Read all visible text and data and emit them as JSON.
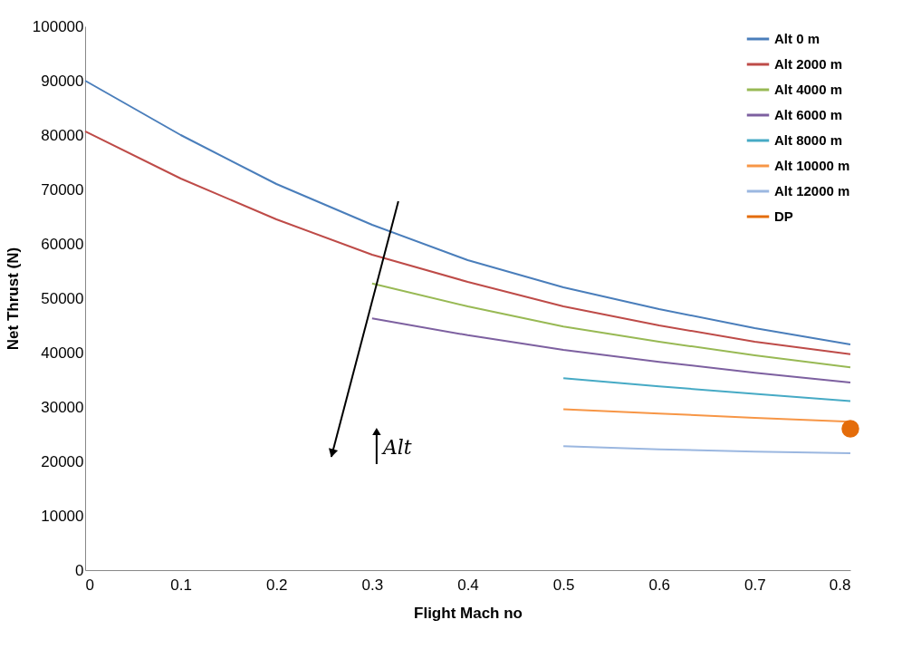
{
  "chart_data": {
    "type": "line",
    "xlabel": "Flight Mach no",
    "ylabel": "Net Thrust (N)",
    "xlim": [
      0,
      0.8
    ],
    "xticks": [
      0,
      0.1,
      0.2,
      0.3,
      0.4,
      0.5,
      0.6,
      0.7,
      0.8
    ],
    "ylim": [
      0,
      100000
    ],
    "yticks": [
      0,
      10000,
      20000,
      30000,
      40000,
      50000,
      60000,
      70000,
      80000,
      90000,
      100000
    ],
    "grid": false,
    "legend": "top right",
    "marker": "none",
    "line_style": "solid",
    "series": [
      {
        "name": "Alt 0 m",
        "color": "#4a7ebb",
        "x": [
          0,
          0.1,
          0.2,
          0.3,
          0.4,
          0.5,
          0.6,
          0.7,
          0.8
        ],
        "values": [
          90000,
          80000,
          71000,
          63500,
          57000,
          52000,
          48000,
          44500,
          41500
        ]
      },
      {
        "name": "Alt 2000 m",
        "color": "#be4b48",
        "x": [
          0,
          0.1,
          0.2,
          0.3,
          0.4,
          0.5,
          0.6,
          0.7,
          0.8
        ],
        "values": [
          80700,
          72000,
          64500,
          58000,
          53000,
          48500,
          45000,
          42000,
          39700
        ]
      },
      {
        "name": "Alt 4000 m",
        "color": "#98b954",
        "x": [
          0.3,
          0.4,
          0.5,
          0.6,
          0.7,
          0.8
        ],
        "values": [
          52700,
          48500,
          44800,
          42000,
          39500,
          37300
        ]
      },
      {
        "name": "Alt 6000 m",
        "color": "#7d60a0",
        "x": [
          0.3,
          0.4,
          0.5,
          0.6,
          0.7,
          0.8
        ],
        "values": [
          46300,
          43200,
          40500,
          38300,
          36300,
          34500
        ]
      },
      {
        "name": "Alt 8000 m",
        "color": "#46aac5",
        "x": [
          0.5,
          0.6,
          0.7,
          0.8
        ],
        "values": [
          35300,
          33800,
          32400,
          31100
        ]
      },
      {
        "name": "Alt 10000 m",
        "color": "#f79646",
        "x": [
          0.5,
          0.6,
          0.7,
          0.8
        ],
        "values": [
          29600,
          28800,
          28000,
          27300
        ]
      },
      {
        "name": "Alt 12000 m",
        "color": "#9bb7e0",
        "x": [
          0.5,
          0.6,
          0.7,
          0.8
        ],
        "values": [
          22800,
          22200,
          21800,
          21500
        ]
      },
      {
        "name": "DP",
        "type": "scatter",
        "marker": "circle",
        "color": "#e46c0a",
        "x": [
          0.8
        ],
        "values": [
          26000
        ]
      }
    ],
    "annotations": [
      "Alt"
    ]
  }
}
